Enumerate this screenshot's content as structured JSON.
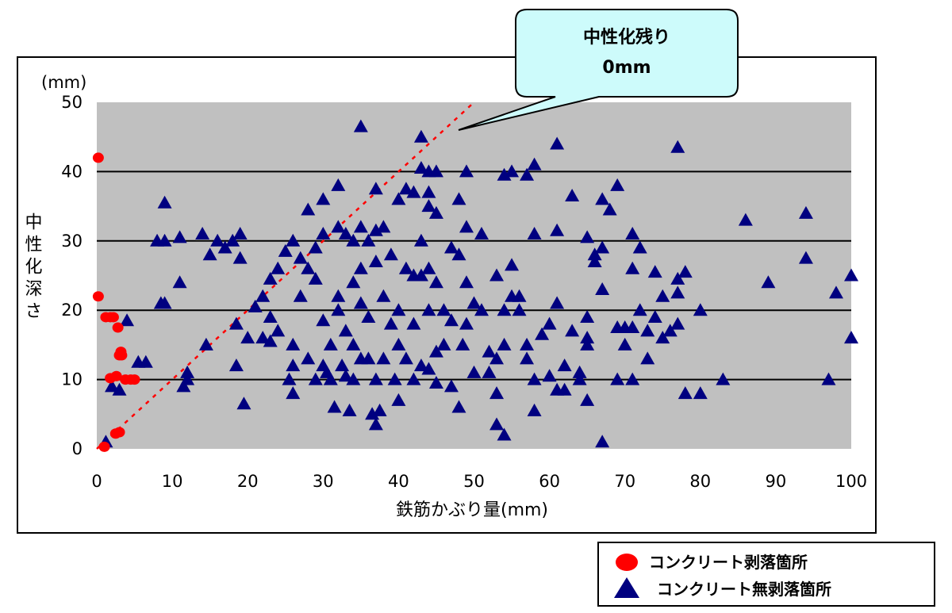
{
  "chart_data": {
    "type": "scatter",
    "xlabel": "鉄筋かぶり量(mm)",
    "ylabel": "中性化深さ",
    "yunit": "(mm)",
    "xlim": [
      0,
      100
    ],
    "ylim": [
      0,
      50
    ],
    "xticks": [
      "0",
      "10",
      "20",
      "30",
      "40",
      "50",
      "60",
      "70",
      "80",
      "90",
      "100"
    ],
    "yticks": [
      "0",
      "10",
      "20",
      "30",
      "40",
      "50"
    ],
    "grid": "horizontal",
    "background": "#c0c0c0",
    "legend_position": "bottom-right",
    "callout": {
      "line1": "中性化残り",
      "line2": "0mm"
    },
    "reference_line": {
      "points": [
        [
          0,
          0
        ],
        [
          50,
          50
        ]
      ],
      "color": "#ff0000",
      "style": "dotted"
    },
    "series": [
      {
        "name": "コンクリート剥落箇所",
        "marker": "circle",
        "color": "#ff0000",
        "points": [
          [
            0.2,
            42
          ],
          [
            0.2,
            22
          ],
          [
            1.2,
            19
          ],
          [
            1.8,
            19
          ],
          [
            2.2,
            19
          ],
          [
            2.8,
            17.5
          ],
          [
            3.2,
            14
          ],
          [
            3,
            13.5
          ],
          [
            3.3,
            13.5
          ],
          [
            2.6,
            10.5
          ],
          [
            1.8,
            10.2
          ],
          [
            3.8,
            10
          ],
          [
            4.5,
            10
          ],
          [
            5,
            10
          ],
          [
            2.5,
            2.2
          ],
          [
            3,
            2.4
          ],
          [
            1,
            0.3
          ]
        ]
      },
      {
        "name": "コンクリート無剥落箇所",
        "marker": "triangle",
        "color": "#000080",
        "points": [
          [
            1.2,
            1
          ],
          [
            2,
            9
          ],
          [
            3,
            8.5
          ],
          [
            4,
            18.5
          ],
          [
            5.5,
            12.5
          ],
          [
            6.5,
            12.5
          ],
          [
            8,
            30
          ],
          [
            9,
            30
          ],
          [
            9,
            35.5
          ],
          [
            8.5,
            21
          ],
          [
            9,
            21
          ],
          [
            11,
            24
          ],
          [
            11,
            30.5
          ],
          [
            11.5,
            9
          ],
          [
            12,
            11
          ],
          [
            12,
            10
          ],
          [
            14,
            31
          ],
          [
            14.5,
            15
          ],
          [
            15,
            28
          ],
          [
            16,
            30
          ],
          [
            17,
            29
          ],
          [
            18,
            30
          ],
          [
            18.5,
            12
          ],
          [
            18.5,
            18
          ],
          [
            19,
            31
          ],
          [
            19,
            27.5
          ],
          [
            19.5,
            6.5
          ],
          [
            20,
            16
          ],
          [
            21,
            20.5
          ],
          [
            22,
            22
          ],
          [
            22,
            16
          ],
          [
            23,
            24.5
          ],
          [
            23,
            19
          ],
          [
            23,
            15.5
          ],
          [
            24,
            26
          ],
          [
            24,
            17
          ],
          [
            25,
            28.5
          ],
          [
            25.5,
            10
          ],
          [
            26,
            30
          ],
          [
            26,
            15
          ],
          [
            26,
            12
          ],
          [
            26,
            8
          ],
          [
            27,
            27.5
          ],
          [
            27,
            22
          ],
          [
            28,
            34.5
          ],
          [
            28,
            26
          ],
          [
            28,
            13
          ],
          [
            29,
            29
          ],
          [
            29,
            24.5
          ],
          [
            29,
            10
          ],
          [
            30,
            36
          ],
          [
            30,
            31
          ],
          [
            30,
            18.5
          ],
          [
            30,
            12
          ],
          [
            30.5,
            11
          ],
          [
            31,
            15
          ],
          [
            31,
            10
          ],
          [
            31.5,
            6
          ],
          [
            32,
            38
          ],
          [
            32,
            32
          ],
          [
            32,
            22
          ],
          [
            32,
            20
          ],
          [
            32.5,
            12
          ],
          [
            33,
            31
          ],
          [
            33,
            17
          ],
          [
            33,
            10.5
          ],
          [
            33.5,
            5.5
          ],
          [
            34,
            30
          ],
          [
            34,
            24
          ],
          [
            34,
            15
          ],
          [
            34,
            10
          ],
          [
            35,
            46.5
          ],
          [
            35,
            32
          ],
          [
            35,
            26
          ],
          [
            35,
            21
          ],
          [
            35,
            13
          ],
          [
            36,
            30
          ],
          [
            36,
            19
          ],
          [
            36,
            13
          ],
          [
            36.5,
            5
          ],
          [
            37,
            37.5
          ],
          [
            37,
            31.5
          ],
          [
            37,
            27
          ],
          [
            37,
            10
          ],
          [
            37,
            3.5
          ],
          [
            37.5,
            5.5
          ],
          [
            38,
            32
          ],
          [
            38,
            22
          ],
          [
            38,
            13
          ],
          [
            39,
            28
          ],
          [
            39,
            18
          ],
          [
            39.5,
            10
          ],
          [
            40,
            36
          ],
          [
            40,
            20
          ],
          [
            40,
            15
          ],
          [
            40,
            7
          ],
          [
            41,
            37.5
          ],
          [
            41,
            26
          ],
          [
            41,
            13
          ],
          [
            42,
            37
          ],
          [
            42,
            25
          ],
          [
            42,
            18
          ],
          [
            42,
            10
          ],
          [
            43,
            45
          ],
          [
            43,
            40.5
          ],
          [
            43,
            30
          ],
          [
            43,
            25
          ],
          [
            43,
            12
          ],
          [
            44,
            40
          ],
          [
            44,
            37
          ],
          [
            44,
            35
          ],
          [
            44,
            26
          ],
          [
            44,
            20
          ],
          [
            44,
            11.5
          ],
          [
            45,
            40
          ],
          [
            45,
            34
          ],
          [
            45,
            24
          ],
          [
            45,
            14
          ],
          [
            45,
            9.5
          ],
          [
            46,
            20
          ],
          [
            46,
            15
          ],
          [
            47,
            29
          ],
          [
            47,
            18.5
          ],
          [
            47,
            9
          ],
          [
            48,
            36
          ],
          [
            48,
            28
          ],
          [
            48,
            6
          ],
          [
            48.5,
            15
          ],
          [
            49,
            40
          ],
          [
            49,
            32
          ],
          [
            49,
            24
          ],
          [
            49,
            18
          ],
          [
            50,
            21
          ],
          [
            50,
            11
          ],
          [
            51,
            31
          ],
          [
            51,
            20
          ],
          [
            52,
            14
          ],
          [
            52,
            11
          ],
          [
            53,
            25
          ],
          [
            53,
            13
          ],
          [
            53,
            8
          ],
          [
            53,
            3.5
          ],
          [
            54,
            39.5
          ],
          [
            54,
            20
          ],
          [
            54,
            15
          ],
          [
            54,
            2
          ],
          [
            55,
            40
          ],
          [
            55,
            26.5
          ],
          [
            55,
            22
          ],
          [
            56,
            22
          ],
          [
            56,
            20
          ],
          [
            57,
            39.5
          ],
          [
            57,
            15
          ],
          [
            57,
            13
          ],
          [
            58,
            41
          ],
          [
            58,
            31
          ],
          [
            58,
            10
          ],
          [
            58,
            5.5
          ],
          [
            59,
            16.5
          ],
          [
            60,
            10.5
          ],
          [
            60,
            18
          ],
          [
            61,
            44
          ],
          [
            61,
            31.5
          ],
          [
            61,
            21
          ],
          [
            61,
            8.5
          ],
          [
            62,
            8.5
          ],
          [
            62,
            12
          ],
          [
            63,
            36.5
          ],
          [
            63,
            17
          ],
          [
            64,
            11
          ],
          [
            64,
            10
          ],
          [
            65,
            30.5
          ],
          [
            65,
            16
          ],
          [
            65,
            15
          ],
          [
            65,
            19
          ],
          [
            65,
            7
          ],
          [
            66,
            28
          ],
          [
            66,
            27
          ],
          [
            67,
            36
          ],
          [
            67,
            29
          ],
          [
            67,
            23
          ],
          [
            67,
            1
          ],
          [
            68,
            34.5
          ],
          [
            69,
            38
          ],
          [
            69,
            17.5
          ],
          [
            69,
            10
          ],
          [
            70,
            17.5
          ],
          [
            70,
            15
          ],
          [
            71,
            31
          ],
          [
            71,
            26
          ],
          [
            71,
            17.5
          ],
          [
            71,
            10
          ],
          [
            72,
            29
          ],
          [
            72,
            20
          ],
          [
            73,
            17
          ],
          [
            73,
            13
          ],
          [
            74,
            25.5
          ],
          [
            74,
            19
          ],
          [
            75,
            22
          ],
          [
            75,
            16
          ],
          [
            76,
            17
          ],
          [
            77,
            43.5
          ],
          [
            77,
            24.5
          ],
          [
            77,
            22.5
          ],
          [
            77,
            18
          ],
          [
            78,
            25.5
          ],
          [
            78,
            8
          ],
          [
            80,
            8
          ],
          [
            80,
            20
          ],
          [
            83,
            10
          ],
          [
            86,
            33
          ],
          [
            89,
            24
          ],
          [
            94,
            34
          ],
          [
            94,
            27.5
          ],
          [
            97,
            10
          ],
          [
            98,
            22.5
          ],
          [
            100,
            25
          ],
          [
            100,
            16
          ]
        ]
      }
    ]
  }
}
